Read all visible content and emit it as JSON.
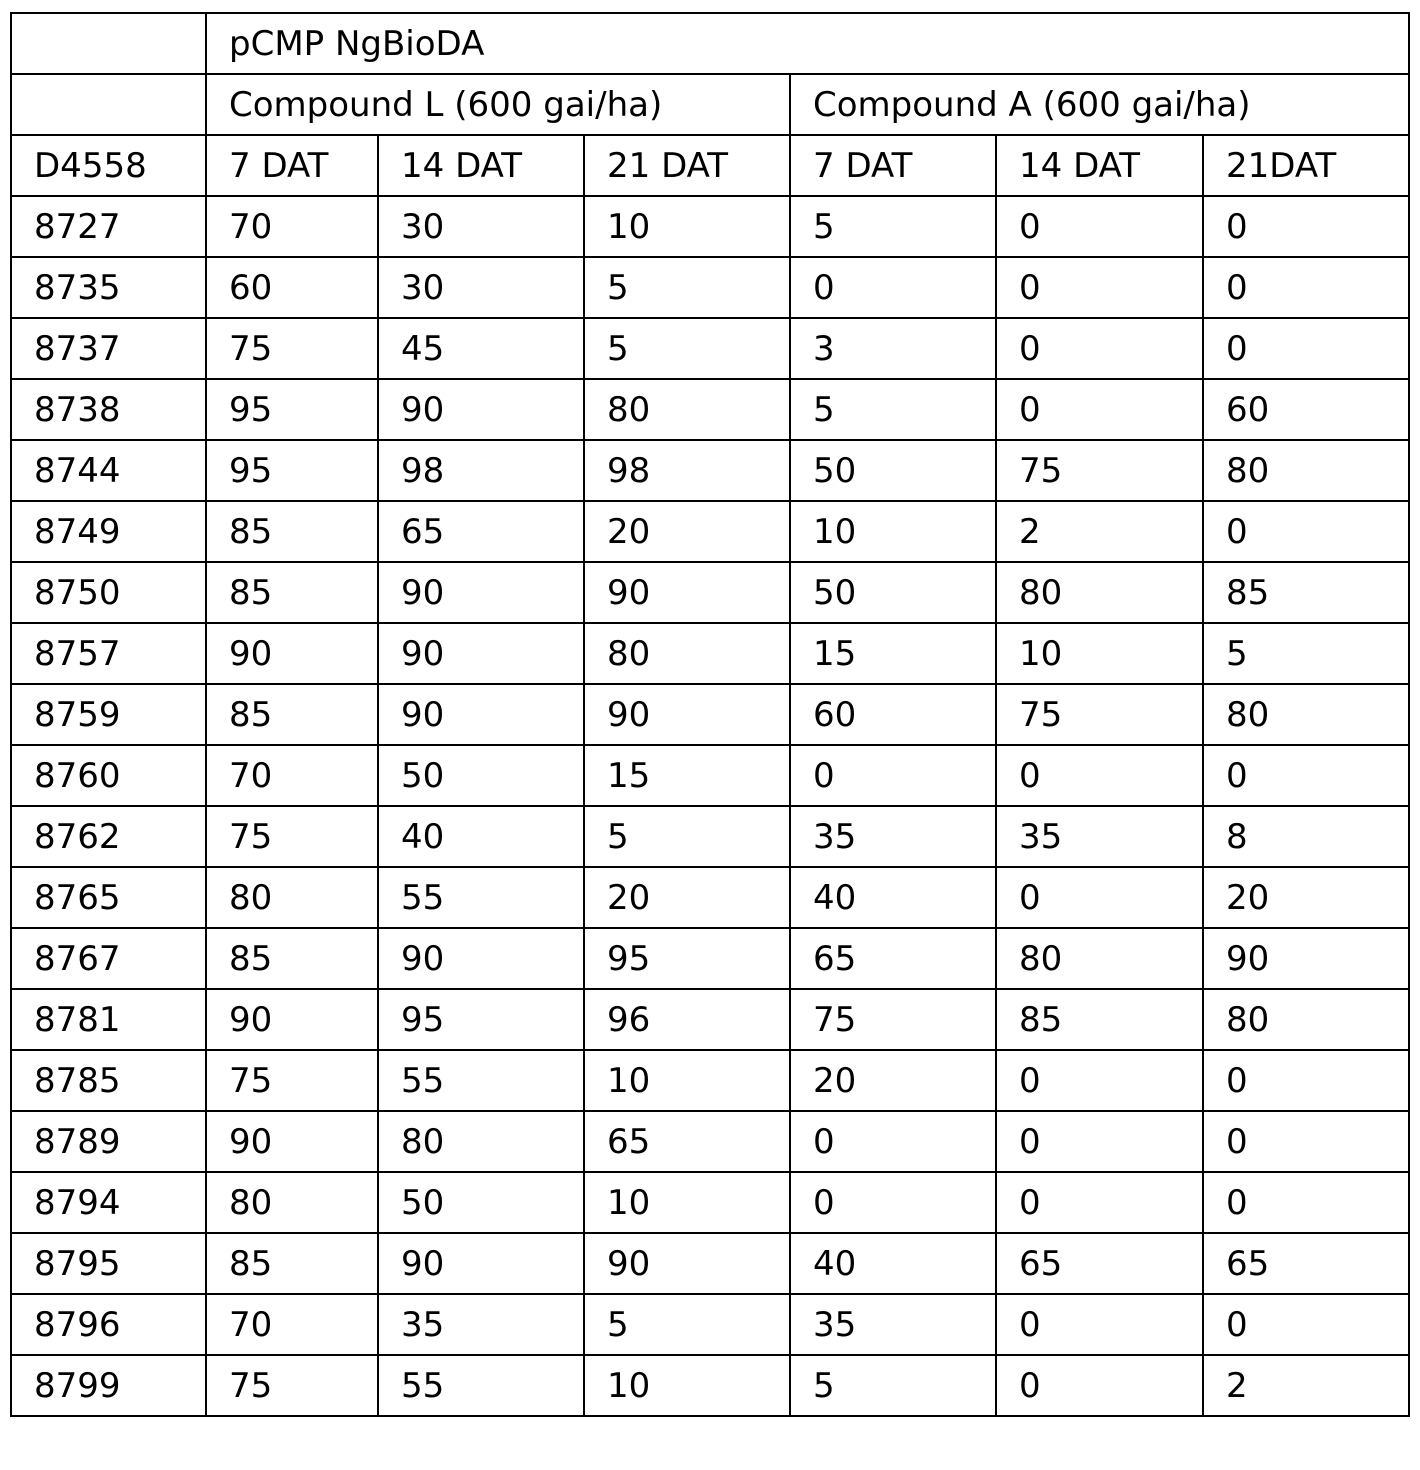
{
  "table": {
    "group": "pCMP NgBioDA",
    "subgroups": [
      "Compound L (600 gai/ha)",
      "Compound A (600 gai/ha)"
    ],
    "columns": [
      "D4558",
      "7 DAT",
      "14 DAT",
      "21 DAT",
      "7 DAT",
      "14 DAT",
      "21DAT"
    ],
    "rows": [
      [
        "8727",
        70,
        30,
        10,
        5,
        0,
        0
      ],
      [
        "8735",
        60,
        30,
        5,
        0,
        0,
        0
      ],
      [
        "8737",
        75,
        45,
        5,
        3,
        0,
        0
      ],
      [
        "8738",
        95,
        90,
        80,
        5,
        0,
        60
      ],
      [
        "8744",
        95,
        98,
        98,
        50,
        75,
        80
      ],
      [
        "8749",
        85,
        65,
        20,
        10,
        2,
        0
      ],
      [
        "8750",
        85,
        90,
        90,
        50,
        80,
        85
      ],
      [
        "8757",
        90,
        90,
        80,
        15,
        10,
        5
      ],
      [
        "8759",
        85,
        90,
        90,
        60,
        75,
        80
      ],
      [
        "8760",
        70,
        50,
        15,
        0,
        0,
        0
      ],
      [
        "8762",
        75,
        40,
        5,
        35,
        35,
        8
      ],
      [
        "8765",
        80,
        55,
        20,
        40,
        0,
        20
      ],
      [
        "8767",
        85,
        90,
        95,
        65,
        80,
        90
      ],
      [
        "8781",
        90,
        95,
        96,
        75,
        85,
        80
      ],
      [
        "8785",
        75,
        55,
        10,
        20,
        0,
        0
      ],
      [
        "8789",
        90,
        80,
        65,
        0,
        0,
        0
      ],
      [
        "8794",
        80,
        50,
        10,
        0,
        0,
        0
      ],
      [
        "8795",
        85,
        90,
        90,
        40,
        65,
        65
      ],
      [
        "8796",
        70,
        35,
        5,
        35,
        0,
        0
      ],
      [
        "8799",
        75,
        55,
        10,
        5,
        0,
        2
      ]
    ]
  }
}
